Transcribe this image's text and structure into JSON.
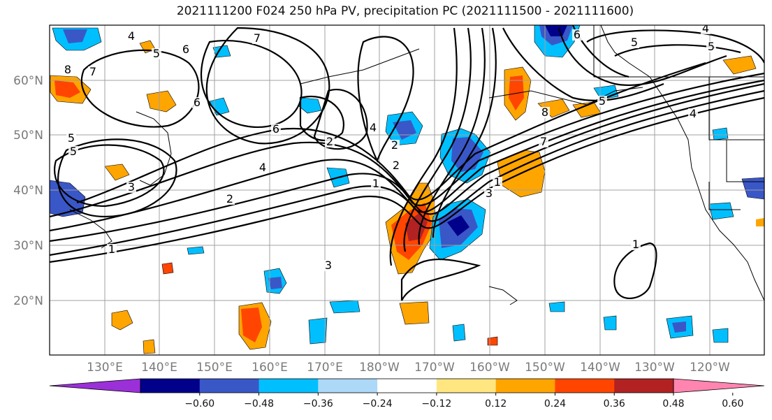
{
  "title": "2021111200 F024 250 hPa PV, precipitation PC (2021111500 - 2021111600)",
  "lat_labels": [
    "60°N",
    "50°N",
    "40°N",
    "30°N",
    "20°N"
  ],
  "lon_labels": [
    "130°E",
    "140°E",
    "150°E",
    "160°E",
    "170°E",
    "180°W",
    "170°W",
    "160°W",
    "150°W",
    "140°W",
    "130°W",
    "120°W"
  ],
  "colorbar": {
    "colors": [
      "#9b30d9",
      "#00008b",
      "#3a57c8",
      "#00bfff",
      "#add8f7",
      "#ffffff",
      "#ffe680",
      "#ffa500",
      "#ff4500",
      "#b22222",
      "#ff85b0"
    ],
    "tick_labels": [
      "−0.60",
      "−0.48",
      "−0.36",
      "−0.24",
      "−0.12",
      "0.12",
      "0.24",
      "0.36",
      "0.48",
      "0.60"
    ]
  },
  "contour_labels": [
    "4",
    "5",
    "6",
    "7",
    "8",
    "6",
    "5",
    "7",
    "5",
    "3",
    "2",
    "4",
    "6",
    "2",
    "3",
    "2",
    "4",
    "1",
    "2",
    "1",
    "5",
    "4",
    "6",
    "8",
    "5",
    "7",
    "4",
    "5",
    "3",
    "1",
    "1"
  ]
}
